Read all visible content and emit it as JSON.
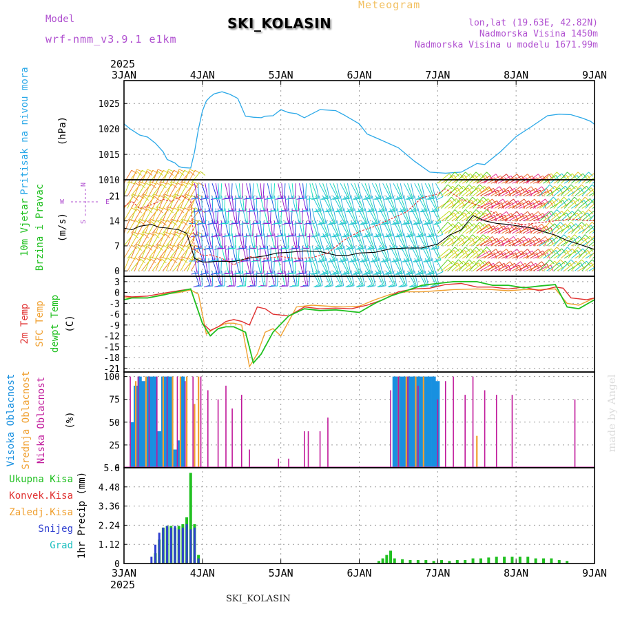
{
  "header": {
    "model_label": "Model",
    "model_name": "wrf-nmm_v3.9.1 e1km",
    "station": "SKI_KOLASIN",
    "title": "Meteogram",
    "lonlat": "lon,lat (19.63E, 42.82N)",
    "elevation": "Nadmorska Visina 1450m",
    "model_elevation": "Nadmorska Visina u modelu 1671.99m"
  },
  "footer": {
    "station": "SKI_KOLASIN",
    "credit": "made by Angel"
  },
  "colors": {
    "pressure": "#2aa8e8",
    "wind_speed": "#000000",
    "gust": "#e03030",
    "temp2m": "#e03030",
    "sfc_temp": "#f0a030",
    "dewpoint": "#20c020",
    "high_cloud": "#1890e0",
    "mid_cloud": "#f0a030",
    "low_cloud": "#c0189a",
    "total_precip": "#20c020",
    "conv_precip": "#e03030",
    "snow": "#3040d0",
    "graupel": "#20c0c0"
  },
  "chart_data": [
    {
      "type": "line",
      "panel": "pressure",
      "year": "2025",
      "x_tick_labels": [
        "3JAN",
        "4JAN",
        "5JAN",
        "6JAN",
        "7JAN",
        "8JAN",
        "9JAN"
      ],
      "ylabel_left": "Pritisak na nivou mora",
      "unit": "(hPa)",
      "yticks": [
        1010,
        1015,
        1020,
        1025
      ],
      "ylim": [
        1010,
        1029.5
      ],
      "grid": true,
      "series": [
        {
          "name": "Pritisak na nivou mora",
          "x_days": [
            0,
            0.08,
            0.2,
            0.3,
            0.4,
            0.5,
            0.55,
            0.65,
            0.7,
            0.75,
            0.85,
            0.9,
            0.95,
            1.0,
            1.05,
            1.1,
            1.15,
            1.25,
            1.35,
            1.45,
            1.55,
            1.65,
            1.75,
            1.8,
            1.9,
            2.0,
            2.1,
            2.2,
            2.3,
            2.5,
            2.7,
            2.8,
            3.0,
            3.1,
            3.25,
            3.5,
            3.7,
            3.9,
            4.1,
            4.3,
            4.5,
            4.6,
            4.8,
            5.0,
            5.2,
            5.4,
            5.55,
            5.7,
            5.85,
            5.95,
            6.0
          ],
          "values": [
            1021,
            1020,
            1018.8,
            1018.4,
            1017.2,
            1015.5,
            1014,
            1013.3,
            1012.6,
            1012.4,
            1012.3,
            1015.5,
            1020,
            1023.5,
            1025.5,
            1026.3,
            1026.9,
            1027.3,
            1026.8,
            1026,
            1022.5,
            1022.3,
            1022.2,
            1022.5,
            1022.6,
            1023.8,
            1023.2,
            1023,
            1022.2,
            1023.8,
            1023.6,
            1022.8,
            1021,
            1019,
            1018,
            1016.3,
            1013.7,
            1011.5,
            1011.3,
            1011.5,
            1013.2,
            1013,
            1015.5,
            1018.5,
            1020.5,
            1022.6,
            1022.9,
            1022.8,
            1022.1,
            1021.5,
            1020.9
          ]
        }
      ]
    },
    {
      "type": "line",
      "panel": "wind",
      "ylabel_left": "10m Vjetar",
      "ylabel_left2": "Brzina i Pravac",
      "unit": "(m/s)",
      "direction_legend": [
        "N",
        "E",
        "S",
        "W"
      ],
      "yticks": [
        0,
        7,
        14,
        21
      ],
      "ylim": [
        -1.5,
        25.5
      ],
      "grid": true,
      "barb_rows": [
        0,
        3.5,
        7,
        10.5,
        14,
        17.5,
        21,
        24.5
      ],
      "barb_segments": [
        {
          "x0": 0,
          "x1": 0.9,
          "deg": 30,
          "color_set": "yellow-orange"
        },
        {
          "x0": 0.9,
          "x1": 1.2,
          "deg": 170,
          "color_set": "blue-purple"
        },
        {
          "x0": 1.2,
          "x1": 2.4,
          "deg": 175,
          "color_set": "purple-blue-cyan"
        },
        {
          "x0": 2.4,
          "x1": 4.0,
          "deg": 160,
          "color_set": "cyan"
        },
        {
          "x0": 4.0,
          "x1": 4.5,
          "deg": 50,
          "color_set": "green-yellow"
        },
        {
          "x0": 4.5,
          "x1": 5.3,
          "deg": 60,
          "color_set": "red-orange"
        },
        {
          "x0": 5.3,
          "x1": 6.0,
          "deg": 50,
          "color_set": "green-yellow-cyan"
        }
      ],
      "series": [
        {
          "name": "wind_speed",
          "x_days": [
            0,
            0.1,
            0.2,
            0.35,
            0.45,
            0.55,
            0.7,
            0.8,
            0.9,
            1.0,
            1.1,
            1.2,
            1.4,
            1.6,
            1.8,
            1.95,
            2.1,
            2.3,
            2.5,
            2.7,
            2.85,
            3.0,
            3.2,
            3.4,
            3.6,
            3.8,
            4.0,
            4.15,
            4.3,
            4.45,
            4.6,
            4.75,
            4.9,
            5.05,
            5.2,
            5.35,
            5.5,
            5.65,
            5.8,
            6.0
          ],
          "values": [
            12,
            11.5,
            12.5,
            13,
            12.2,
            12,
            11.5,
            10.5,
            3.5,
            2.5,
            2.5,
            2.7,
            2.6,
            3.6,
            4.2,
            5,
            5.2,
            5.6,
            5.4,
            4.4,
            4.3,
            5,
            5.2,
            6.2,
            6.4,
            6.4,
            7.5,
            10,
            11.5,
            15.5,
            14,
            13.3,
            13,
            12.5,
            12,
            11,
            10,
            8.5,
            7.5,
            6
          ]
        },
        {
          "name": "gust",
          "x_days": [
            0,
            0.1,
            0.2,
            0.35,
            0.5,
            0.6,
            0.75,
            0.85,
            0.9,
            1.0,
            1.1,
            1.25,
            1.4,
            1.6,
            1.8,
            2.0,
            2.2,
            2.4,
            2.6,
            2.8,
            3.0,
            3.2,
            3.4,
            3.6,
            3.8,
            4.0,
            4.1,
            4.3,
            4.5,
            4.7,
            4.9,
            5.1,
            5.3,
            5.5,
            5.7,
            6.0
          ],
          "values": [
            18,
            19.5,
            17.5,
            18.5,
            20,
            19.5,
            21,
            19.5,
            6,
            4.2,
            4.5,
            3.5,
            1.7,
            4,
            3.5,
            4,
            3.5,
            3.7,
            5,
            8.5,
            11,
            12.5,
            14.5,
            16.5,
            20.5,
            21.5,
            23,
            20,
            18.5,
            16.5,
            13.5,
            13,
            13.5,
            14,
            14.5,
            14
          ]
        }
      ]
    },
    {
      "type": "line",
      "panel": "temperature",
      "ylabel_left": [
        "2m Temp",
        "SFC Temp",
        "dewpt Temp"
      ],
      "unit": "(C)",
      "yticks": [
        3,
        0,
        -3,
        -6,
        -9,
        -12,
        -15,
        -18,
        -21
      ],
      "ylim": [
        -22,
        4.5
      ],
      "grid": true,
      "series": [
        {
          "name": "2m Temp",
          "x_days": [
            0,
            0.1,
            0.3,
            0.5,
            0.7,
            0.85,
            1.0,
            1.1,
            1.2,
            1.3,
            1.4,
            1.5,
            1.6,
            1.7,
            1.8,
            1.9,
            2.1,
            2.3,
            2.5,
            2.7,
            2.9,
            3.1,
            3.3,
            3.5,
            3.7,
            3.9,
            4.1,
            4.3,
            4.5,
            4.7,
            4.9,
            5.1,
            5.3,
            5.5,
            5.6,
            5.7,
            5.9,
            6.0
          ],
          "values": [
            -1,
            -1.2,
            -1,
            -0.2,
            0.5,
            1,
            -8.5,
            -10.5,
            -9.5,
            -8,
            -7.5,
            -8,
            -9,
            -4,
            -4.5,
            -6,
            -6.5,
            -4,
            -4.5,
            -4.3,
            -4.5,
            -3.5,
            -2,
            0.2,
            1,
            1.2,
            2.2,
            2.5,
            1.5,
            1.5,
            1,
            1.5,
            0.5,
            1.5,
            1.2,
            -1.5,
            -2,
            -1.5
          ]
        },
        {
          "name": "SFC Temp",
          "x_days": [
            0,
            0.1,
            0.3,
            0.5,
            0.7,
            0.85,
            0.95,
            1.05,
            1.15,
            1.3,
            1.4,
            1.5,
            1.6,
            1.7,
            1.8,
            1.9,
            2.0,
            2.2,
            2.4,
            2.6,
            2.8,
            3.0,
            3.2,
            3.4,
            3.6,
            3.8,
            4.0,
            4.2,
            4.5,
            4.7,
            4.9,
            5.1,
            5.3,
            5.5,
            5.65,
            5.8,
            6.0
          ],
          "values": [
            -1.5,
            -1.3,
            -1.5,
            -0.5,
            0,
            0.7,
            -0.5,
            -11.5,
            -10,
            -8.5,
            -8.5,
            -9,
            -20.5,
            -17,
            -11,
            -10,
            -12,
            -4,
            -3.5,
            -3.8,
            -4,
            -3.8,
            -2,
            -0.5,
            0.2,
            0.2,
            0.5,
            0.8,
            1,
            0.8,
            0.5,
            0.8,
            0.8,
            1,
            -3,
            -3.5,
            -1.5
          ]
        },
        {
          "name": "dewpt Temp",
          "x_days": [
            0,
            0.1,
            0.3,
            0.5,
            0.7,
            0.85,
            1.0,
            1.1,
            1.2,
            1.3,
            1.4,
            1.55,
            1.65,
            1.75,
            1.9,
            2.1,
            2.3,
            2.5,
            2.7,
            3.0,
            3.2,
            3.4,
            3.6,
            3.8,
            4.0,
            4.2,
            4.5,
            4.7,
            4.9,
            5.1,
            5.3,
            5.5,
            5.65,
            5.8,
            6.0
          ],
          "values": [
            -2,
            -1.5,
            -1.5,
            -0.7,
            0.3,
            1,
            -8.5,
            -12,
            -10,
            -9.5,
            -9.5,
            -11,
            -19.5,
            -17,
            -11,
            -6.5,
            -4.5,
            -5,
            -4.8,
            -5.5,
            -3,
            -1,
            0.5,
            2,
            2.5,
            3,
            3,
            2,
            2,
            1.3,
            1.8,
            2.2,
            -4,
            -4.5,
            -2
          ]
        }
      ]
    },
    {
      "type": "bar",
      "panel": "cloud",
      "ylabel_left": [
        "Visoka Oblacnost",
        "Srednja Oblacnost",
        "Niska Oblacnost"
      ],
      "unit": "(%)",
      "yticks": [
        0,
        25,
        50,
        75,
        100
      ],
      "ylim": [
        0,
        105
      ],
      "grid": true,
      "series": [
        {
          "name": "Visoka Oblacnost",
          "x_days": [
            0.1,
            0.12,
            0.15,
            0.2,
            0.25,
            0.3,
            0.35,
            0.4,
            0.45,
            0.5,
            0.55,
            0.6,
            0.65,
            0.7,
            0.75,
            3.45,
            3.5,
            3.55,
            3.6,
            3.65,
            3.7,
            3.75,
            3.8,
            3.85,
            3.9,
            3.95,
            4.0
          ],
          "values": [
            50,
            30,
            90,
            100,
            95,
            100,
            100,
            100,
            40,
            100,
            100,
            100,
            20,
            30,
            100,
            100,
            100,
            100,
            100,
            100,
            100,
            100,
            100,
            100,
            100,
            100,
            95
          ]
        },
        {
          "name": "Srednja Oblacnost",
          "x_days": [
            0.15,
            0.28,
            0.5,
            0.62,
            0.72,
            0.8,
            0.9,
            0.95,
            3.5,
            3.6,
            3.72,
            3.82,
            4.5
          ],
          "values": [
            95,
            100,
            100,
            100,
            100,
            100,
            70,
            100,
            100,
            100,
            100,
            100,
            35
          ]
        },
        {
          "name": "Niska Oblacnost",
          "x_days": [
            0.08,
            0.18,
            0.32,
            0.42,
            0.55,
            0.68,
            0.78,
            0.88,
            0.98,
            1.07,
            1.2,
            1.3,
            1.38,
            1.5,
            1.6,
            1.97,
            2.1,
            2.3,
            2.35,
            2.5,
            2.6,
            3.4,
            3.5,
            3.62,
            3.75,
            4.0,
            4.1,
            4.2,
            4.35,
            4.45,
            4.6,
            4.75,
            4.95,
            5.75
          ],
          "values": [
            100,
            100,
            100,
            100,
            100,
            100,
            95,
            100,
            100,
            85,
            75,
            90,
            65,
            80,
            20,
            10,
            10,
            40,
            40,
            40,
            55,
            85,
            100,
            100,
            90,
            75,
            95,
            100,
            80,
            100,
            85,
            80,
            80,
            75
          ]
        }
      ]
    },
    {
      "type": "bar",
      "panel": "precipitation",
      "legend": [
        "Ukupna Kisa",
        "Konvek.Kisa",
        "Zaledj.Kisa",
        "Snijeg",
        "Grad"
      ],
      "ylabel": "1hr Precip (mm)",
      "yticks": [
        0,
        1.12,
        2.24,
        3.36,
        4.48,
        5.6
      ],
      "ylim": [
        0,
        5.6
      ],
      "grid": true,
      "series": [
        {
          "name": "Ukupna Kisa",
          "x_days": [
            0.4,
            0.45,
            0.5,
            0.55,
            0.6,
            0.65,
            0.7,
            0.75,
            0.8,
            0.85,
            0.9,
            0.95,
            3.25,
            3.3,
            3.35,
            3.4,
            3.45,
            3.55,
            3.65,
            3.75,
            3.85,
            3.95,
            4.05,
            4.15,
            4.25,
            4.35,
            4.45,
            4.55,
            4.65,
            4.75,
            4.85,
            4.95,
            5.05,
            5.15,
            5.25,
            5.35,
            5.45,
            5.55,
            5.65
          ],
          "values": [
            0.6,
            1.4,
            2.1,
            2.2,
            2.2,
            2.1,
            2.2,
            2.3,
            2.7,
            5.3,
            2.3,
            0.5,
            0.15,
            0.3,
            0.5,
            0.75,
            0.3,
            0.25,
            0.2,
            0.2,
            0.2,
            0.15,
            0.2,
            0.15,
            0.2,
            0.2,
            0.3,
            0.3,
            0.35,
            0.4,
            0.4,
            0.4,
            0.4,
            0.4,
            0.3,
            0.3,
            0.3,
            0.2,
            0.15
          ]
        },
        {
          "name": "Konvek.Kisa",
          "x_days": [
            0.8,
            0.85,
            0.9
          ],
          "values": [
            0.3,
            0.4,
            0.3
          ]
        },
        {
          "name": "Zaledj.Kisa",
          "x_days": [
            0.7,
            0.75
          ],
          "values": [
            0.2,
            0.1
          ]
        },
        {
          "name": "Snijeg",
          "x_days": [
            0.35,
            0.4,
            0.45,
            0.5,
            0.55,
            0.6,
            0.65,
            0.7,
            0.75,
            0.8,
            0.85,
            0.9,
            0.95
          ],
          "values": [
            0.4,
            1.1,
            1.8,
            2.1,
            2.2,
            2.1,
            2.2,
            2.0,
            2.1,
            2.3,
            2.0,
            2.1,
            0.3
          ]
        },
        {
          "name": "Grad",
          "x_days": [
            0.6,
            0.75
          ],
          "values": [
            0.05,
            0.05
          ]
        }
      ]
    }
  ]
}
